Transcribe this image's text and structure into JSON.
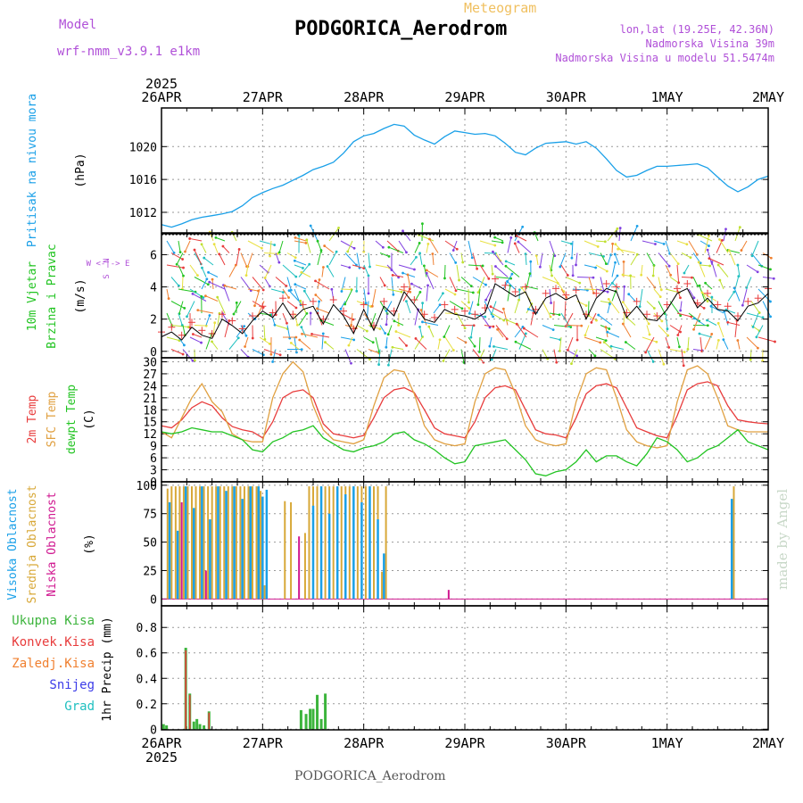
{
  "header": {
    "model_label": "Model",
    "model_name": "wrf-nmm_v3.9.1 e1km",
    "meteogram": "Meteogram",
    "station": "PODGORICA_Aerodrom",
    "lonlat": "lon,lat (19.25E, 42.36N)",
    "elevation": "Nadmorska Visina 39m",
    "elevation_model": "Nadmorska Visina u modelu 51.5474m"
  },
  "footer": "PODGORICA_Aerodrom",
  "watermark": "made by Angel",
  "colors": {
    "pressure": "#1aa0e8",
    "temp2m": "#e83c3c",
    "sfc_temp": "#e0a040",
    "dewpt": "#22c422",
    "high_cloud": "#1aa0e8",
    "mid_cloud": "#d8a838",
    "low_cloud": "#d01890",
    "total_precip": "#3cb43c",
    "conv_precip": "#e83c3c",
    "freezing_precip": "#f08030",
    "snow": "#3c3ce8",
    "graupel": "#20c0c0"
  },
  "chart_data": [
    {
      "type": "line",
      "panel": "pressure",
      "title": "",
      "ylabel": "Pritisak na nivou mora",
      "unit": "(hPa)",
      "year": "2025",
      "x_ticks": [
        "26APR",
        "27APR",
        "28APR",
        "29APR",
        "30APR",
        "1MAY",
        "2MAY"
      ],
      "ylim": [
        1009.5,
        1024.7
      ],
      "yticks": [
        1012,
        1016,
        1020
      ],
      "grid": true,
      "series": [
        {
          "key": "pressure",
          "x": [
            0,
            0.1,
            0.2,
            0.3,
            0.4,
            0.5,
            0.6,
            0.7,
            0.8,
            0.9,
            1.0,
            1.1,
            1.2,
            1.3,
            1.4,
            1.5,
            1.6,
            1.7,
            1.8,
            1.9,
            2.0,
            2.1,
            2.2,
            2.3,
            2.4,
            2.5,
            2.6,
            2.7,
            2.8,
            2.9,
            3.0,
            3.1,
            3.2,
            3.3,
            3.4,
            3.5,
            3.6,
            3.7,
            3.8,
            3.9,
            4.0,
            4.1,
            4.2,
            4.3,
            4.4,
            4.5,
            4.6,
            4.7,
            4.8,
            4.9,
            5.0,
            5.1,
            5.2,
            5.3,
            5.4,
            5.5,
            5.6,
            5.7,
            5.8,
            5.9,
            6.0
          ],
          "values": [
            1010.5,
            1010.2,
            1010.6,
            1011.1,
            1011.4,
            1011.6,
            1011.8,
            1012.1,
            1012.8,
            1013.8,
            1014.4,
            1014.9,
            1015.3,
            1015.9,
            1016.5,
            1017.2,
            1017.6,
            1018.1,
            1019.2,
            1020.6,
            1021.3,
            1021.6,
            1022.2,
            1022.7,
            1022.5,
            1021.4,
            1020.8,
            1020.3,
            1021.2,
            1021.9,
            1021.7,
            1021.5,
            1021.6,
            1021.3,
            1020.4,
            1019.3,
            1019.0,
            1019.8,
            1020.4,
            1020.5,
            1020.6,
            1020.3,
            1020.6,
            1019.8,
            1018.5,
            1017.1,
            1016.3,
            1016.5,
            1017.1,
            1017.6,
            1017.6,
            1017.7,
            1017.8,
            1017.9,
            1017.4,
            1016.3,
            1015.2,
            1014.5,
            1015.1,
            1016.0,
            1016.4
          ]
        }
      ]
    },
    {
      "type": "line",
      "panel": "wind",
      "title": "",
      "ylabel_lines": [
        "10m Vjetar",
        "Brzina i Pravac"
      ],
      "unit": "(m/s)",
      "direction_legend": [
        "N",
        "W <-|-> E",
        "S"
      ],
      "ylim": [
        -0.4,
        7.3
      ],
      "yticks": [
        0,
        2,
        4,
        6
      ],
      "grid": true,
      "series": [
        {
          "key": "wind_speed",
          "x": [
            0,
            0.1,
            0.2,
            0.3,
            0.4,
            0.5,
            0.6,
            0.7,
            0.8,
            0.9,
            1.0,
            1.1,
            1.2,
            1.3,
            1.4,
            1.5,
            1.6,
            1.7,
            1.8,
            1.9,
            2.0,
            2.1,
            2.2,
            2.3,
            2.4,
            2.5,
            2.6,
            2.7,
            2.8,
            2.9,
            3.0,
            3.1,
            3.2,
            3.3,
            3.4,
            3.5,
            3.6,
            3.7,
            3.8,
            3.9,
            4.0,
            4.1,
            4.2,
            4.3,
            4.4,
            4.5,
            4.6,
            4.7,
            4.8,
            4.9,
            5.0,
            5.1,
            5.2,
            5.3,
            5.4,
            5.5,
            5.6,
            5.7,
            5.8,
            5.9,
            6.0
          ],
          "values": [
            0.9,
            1.2,
            0.7,
            1.5,
            1.0,
            0.8,
            2.0,
            1.6,
            1.1,
            1.9,
            2.5,
            2.1,
            3.0,
            2.0,
            2.6,
            2.8,
            1.7,
            2.9,
            2.2,
            1.1,
            2.6,
            1.3,
            2.8,
            2.2,
            3.7,
            2.9,
            2.0,
            1.8,
            2.6,
            2.3,
            2.2,
            2.0,
            2.4,
            4.2,
            3.8,
            3.4,
            3.7,
            2.3,
            3.3,
            3.6,
            3.2,
            3.5,
            2.0,
            3.3,
            3.9,
            3.7,
            2.1,
            2.8,
            2.0,
            1.9,
            2.6,
            3.6,
            3.9,
            2.7,
            3.3,
            2.6,
            2.5,
            1.9,
            2.8,
            3.0,
            3.6
          ]
        }
      ]
    },
    {
      "type": "line",
      "panel": "temperature",
      "title": "",
      "ylabel_lines": [
        "2m Temp",
        "SFC Temp",
        "dewpt Temp"
      ],
      "unit": "(C)",
      "ylim": [
        0,
        31
      ],
      "yticks": [
        0,
        3,
        6,
        9,
        12,
        15,
        18,
        21,
        24,
        27,
        30
      ],
      "grid": true,
      "series": [
        {
          "key": "temp2m",
          "name": "2m Temp",
          "x": [
            0,
            0.1,
            0.2,
            0.3,
            0.4,
            0.5,
            0.6,
            0.7,
            0.8,
            0.9,
            1.0,
            1.1,
            1.2,
            1.3,
            1.4,
            1.5,
            1.6,
            1.7,
            1.8,
            1.9,
            2.0,
            2.1,
            2.2,
            2.3,
            2.4,
            2.5,
            2.6,
            2.7,
            2.8,
            2.9,
            3.0,
            3.1,
            3.2,
            3.3,
            3.4,
            3.5,
            3.6,
            3.7,
            3.8,
            3.9,
            4.0,
            4.1,
            4.2,
            4.3,
            4.4,
            4.5,
            4.6,
            4.7,
            4.8,
            4.9,
            5.0,
            5.1,
            5.2,
            5.3,
            5.4,
            5.5,
            5.6,
            5.7,
            5.8,
            5.9,
            6.0
          ],
          "values": [
            14,
            13.5,
            15.5,
            18.5,
            20,
            19,
            16,
            13.8,
            13,
            12.5,
            11,
            15,
            21,
            22.5,
            23,
            21,
            14.5,
            12,
            11.5,
            11,
            11.6,
            16,
            21,
            23,
            23.5,
            22.3,
            18,
            13.5,
            12,
            11.5,
            11,
            15,
            21,
            23.5,
            24,
            23,
            18,
            13,
            12,
            11.7,
            11,
            16,
            22,
            24,
            24.5,
            23.5,
            18.5,
            13.5,
            12.5,
            11.5,
            11,
            16.5,
            23,
            24.5,
            25,
            24,
            19,
            15.5,
            15,
            14.7,
            14.5
          ]
        },
        {
          "key": "sfc_temp",
          "name": "SFC Temp",
          "x": [
            0,
            0.1,
            0.2,
            0.3,
            0.4,
            0.5,
            0.6,
            0.7,
            0.8,
            0.9,
            1.0,
            1.1,
            1.2,
            1.3,
            1.4,
            1.5,
            1.6,
            1.7,
            1.8,
            1.9,
            2.0,
            2.1,
            2.2,
            2.3,
            2.4,
            2.5,
            2.6,
            2.7,
            2.8,
            2.9,
            3.0,
            3.1,
            3.2,
            3.3,
            3.4,
            3.5,
            3.6,
            3.7,
            3.8,
            3.9,
            4.0,
            4.1,
            4.2,
            4.3,
            4.4,
            4.5,
            4.6,
            4.7,
            4.8,
            4.9,
            5.0,
            5.1,
            5.2,
            5.3,
            5.4,
            5.5,
            5.6,
            5.7,
            5.8,
            5.9,
            6.0
          ],
          "values": [
            12.5,
            11,
            16,
            21,
            24.5,
            20,
            17.5,
            12,
            10.5,
            10,
            10,
            21,
            27,
            30,
            27.5,
            19,
            13,
            10.5,
            10,
            9.5,
            10.5,
            19,
            26,
            28,
            27.5,
            22,
            14,
            10.5,
            9.5,
            9,
            9.5,
            20,
            27,
            28.5,
            28,
            22,
            14,
            10.5,
            9.5,
            9,
            9.5,
            20,
            27,
            28.5,
            28,
            21,
            13,
            10,
            9,
            8.5,
            9,
            20,
            28,
            29,
            27,
            21,
            14,
            13,
            12.5,
            12.5,
            12.5
          ]
        },
        {
          "key": "dewpt",
          "name": "dewpt Temp",
          "x": [
            0,
            0.1,
            0.2,
            0.3,
            0.4,
            0.5,
            0.6,
            0.7,
            0.8,
            0.9,
            1.0,
            1.1,
            1.2,
            1.3,
            1.4,
            1.5,
            1.6,
            1.7,
            1.8,
            1.9,
            2.0,
            2.1,
            2.2,
            2.3,
            2.4,
            2.5,
            2.6,
            2.7,
            2.8,
            2.9,
            3.0,
            3.1,
            3.2,
            3.3,
            3.4,
            3.5,
            3.6,
            3.7,
            3.8,
            3.9,
            4.0,
            4.1,
            4.2,
            4.3,
            4.4,
            4.5,
            4.6,
            4.7,
            4.8,
            4.9,
            5.0,
            5.1,
            5.2,
            5.3,
            5.4,
            5.5,
            5.6,
            5.7,
            5.8,
            5.9,
            6.0
          ],
          "values": [
            12.5,
            12,
            12.5,
            13.5,
            13,
            12.5,
            12.5,
            11.5,
            10.5,
            8,
            7.5,
            10,
            11,
            12.5,
            13,
            14,
            11,
            9.5,
            8,
            7.5,
            8.5,
            9,
            10,
            12,
            12.5,
            10.5,
            9.5,
            8,
            6,
            4.5,
            5,
            9,
            9.5,
            10,
            10.5,
            8,
            5.5,
            2,
            1.5,
            2.5,
            3,
            5,
            8,
            5,
            6.5,
            6.5,
            5,
            4,
            7,
            11,
            10,
            8,
            5,
            6,
            8,
            9,
            11,
            13,
            10,
            9,
            8
          ]
        }
      ]
    },
    {
      "type": "bar",
      "panel": "clouds",
      "title": "",
      "ylabel_lines": [
        "Visoka Oblacnost",
        "Srednja Oblacnost",
        "Niska Oblacnost"
      ],
      "unit": "(%)",
      "ylim": [
        -6,
        103
      ],
      "yticks": [
        0,
        25,
        50,
        75,
        100
      ],
      "grid": true,
      "series": [
        {
          "key": "mid_cloud",
          "name": "Srednja Oblacnost",
          "x": [
            0.06,
            0.1,
            0.14,
            0.18,
            0.22,
            0.26,
            0.3,
            0.34,
            0.38,
            0.42,
            0.46,
            0.5,
            0.54,
            0.58,
            0.62,
            0.66,
            0.7,
            0.74,
            0.78,
            0.82,
            0.86,
            0.9,
            0.94,
            0.98,
            1.02,
            1.22,
            1.28,
            1.42,
            1.46,
            1.5,
            1.54,
            1.58,
            1.62,
            1.66,
            1.7,
            1.74,
            1.78,
            1.82,
            1.86,
            1.9,
            1.94,
            1.98,
            2.02,
            2.06,
            2.1,
            2.14,
            2.18,
            2.22,
            5.66
          ],
          "values": [
            97,
            99,
            99,
            99,
            99,
            99,
            99,
            99,
            99,
            99,
            99,
            99,
            99,
            99,
            99,
            99,
            99,
            99,
            99,
            99,
            99,
            99,
            99,
            95,
            12,
            86,
            85,
            58,
            99,
            99,
            99,
            99,
            99,
            99,
            99,
            99,
            99,
            99,
            99,
            99,
            99,
            99,
            99,
            99,
            99,
            99,
            24,
            99,
            99
          ]
        },
        {
          "key": "high_cloud",
          "name": "Visoka Oblacnost",
          "x": [
            0.08,
            0.16,
            0.24,
            0.32,
            0.4,
            0.48,
            0.56,
            0.64,
            0.72,
            0.8,
            0.88,
            0.96,
            1.0,
            1.04,
            1.5,
            1.58,
            1.66,
            1.74,
            1.82,
            1.9,
            1.98,
            2.06,
            2.14,
            2.2,
            5.64
          ],
          "values": [
            85,
            60,
            99,
            80,
            99,
            70,
            99,
            95,
            99,
            88,
            99,
            99,
            90,
            96,
            82,
            99,
            75,
            99,
            92,
            99,
            85,
            99,
            70,
            40,
            88
          ]
        },
        {
          "key": "low_cloud",
          "name": "Niska Oblacnost",
          "x": [
            0.2,
            0.44,
            1.36,
            2.84
          ],
          "values": [
            85,
            25,
            55,
            8
          ]
        }
      ]
    },
    {
      "type": "bar",
      "panel": "precip",
      "title": "",
      "ylabel": "1hr Precip (mm)",
      "legend": [
        "Ukupna Kisa",
        "Konvek.Kisa",
        "Zaledj.Kisa",
        "Snijeg",
        "Grad"
      ],
      "ylim": [
        -0.005,
        0.97
      ],
      "yticks": [
        0,
        0.2,
        0.4,
        0.6,
        0.8
      ],
      "grid": true,
      "year": "2025",
      "x_ticks": [
        "26APR",
        "27APR",
        "28APR",
        "29APR",
        "30APR",
        "1MAY",
        "2MAY"
      ],
      "series": [
        {
          "key": "total_precip",
          "name": "Ukupna Kisa",
          "x": [
            0.02,
            0.05,
            0.24,
            0.28,
            0.32,
            0.35,
            0.38,
            0.42,
            0.47,
            1.38,
            1.43,
            1.47,
            1.5,
            1.54,
            1.58,
            1.62
          ],
          "values": [
            0.04,
            0.03,
            0.64,
            0.28,
            0.06,
            0.08,
            0.04,
            0.03,
            0.14,
            0.15,
            0.12,
            0.16,
            0.16,
            0.27,
            0.08,
            0.28
          ]
        },
        {
          "key": "conv_precip",
          "name": "Konvek.Kisa",
          "x": [
            0.24,
            0.28,
            0.47
          ],
          "values": [
            0.62,
            0.27,
            0.13
          ]
        }
      ]
    }
  ]
}
